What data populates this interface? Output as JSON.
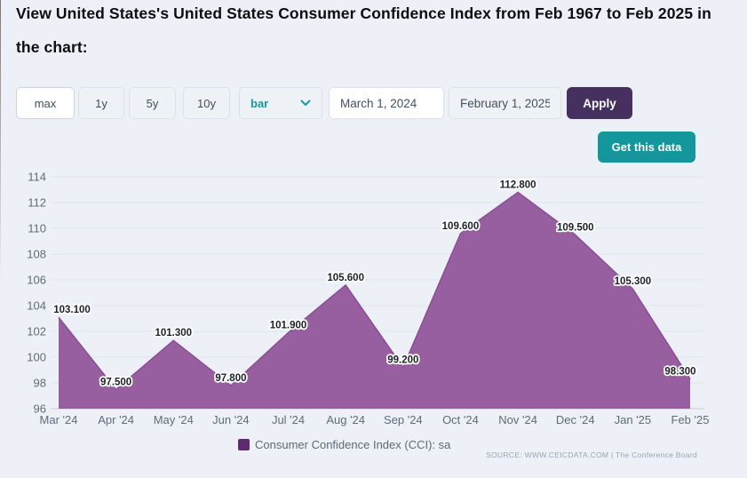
{
  "page": {
    "title": "View United States's United States Consumer Confidence Index from Feb 1967 to Feb 2025 in the chart:",
    "background_color": "#edf1f7"
  },
  "toolbar": {
    "range_buttons": [
      {
        "label": "max",
        "active": true
      },
      {
        "label": "1y",
        "active": false
      },
      {
        "label": "5y",
        "active": false
      },
      {
        "label": "10y",
        "active": false
      }
    ],
    "chart_type_select": {
      "value": "bar"
    },
    "start_date_input": {
      "value": "March 1, 2024"
    },
    "end_date_input": {
      "value": "February 1, 2025"
    },
    "apply_button": {
      "label": "Apply",
      "color": "#45305f"
    },
    "get_data_button": {
      "label": "Get this data",
      "color": "#14979c"
    }
  },
  "chart_data": {
    "type": "area",
    "categories": [
      "Mar '24",
      "Apr '24",
      "May '24",
      "Jun '24",
      "Jul '24",
      "Aug '24",
      "Sep '24",
      "Oct '24",
      "Nov '24",
      "Dec '24",
      "Jan '25",
      "Feb '25"
    ],
    "series": [
      {
        "name": "Consumer Confidence Index (CCI): sa",
        "values": [
          103.1,
          97.5,
          101.3,
          97.8,
          101.9,
          105.6,
          99.2,
          109.6,
          112.8,
          109.5,
          105.3,
          98.3
        ]
      }
    ],
    "data_labels": [
      "103.100",
      "97.500",
      "101.300",
      "97.800",
      "101.900",
      "105.600",
      "99.200",
      "109.600",
      "112.800",
      "109.500",
      "105.300",
      "98.300"
    ],
    "title": "",
    "xlabel": "",
    "ylabel": "",
    "ylim": [
      96,
      114
    ],
    "ytick_step": 2,
    "grid": true,
    "legend_position": "bottom",
    "area_fill": "#975fa0",
    "area_stroke": "#8a4f94",
    "legend_marker_color": "#5e2a71"
  },
  "source": {
    "text": "SOURCE: WWW.CEICDATA.COM | The Conference Board"
  }
}
